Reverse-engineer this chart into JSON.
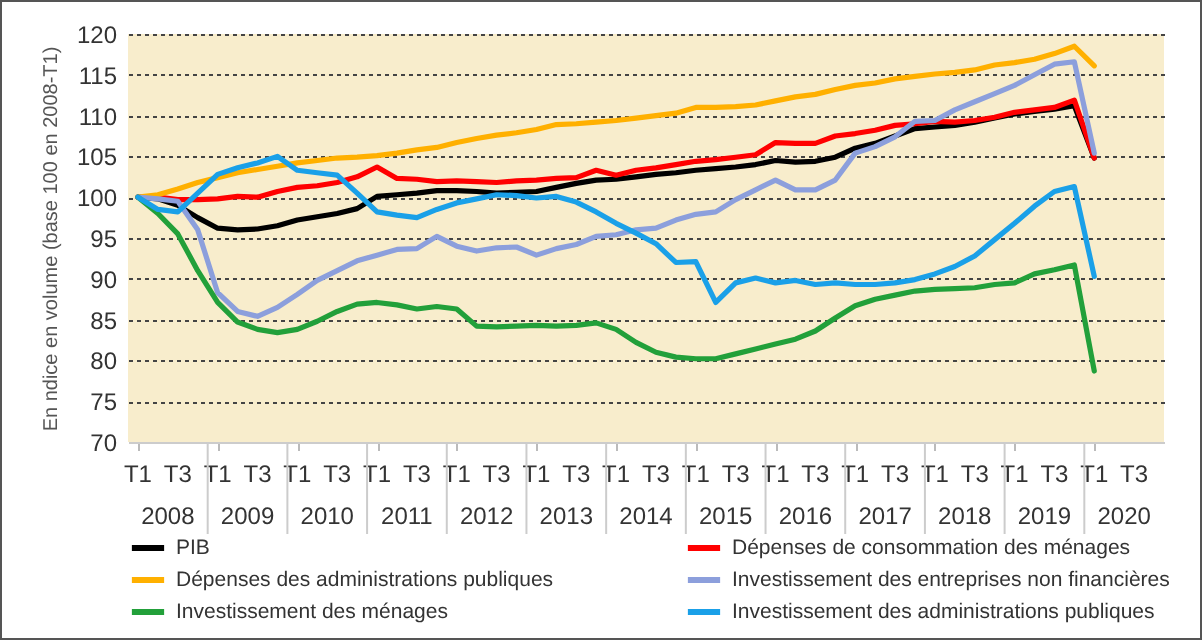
{
  "chart_data": {
    "type": "line",
    "ylabel": "En ndice en volume (base 100 en 2008-T1)",
    "categories": [
      "T1",
      null,
      "T3",
      null,
      "T1",
      null,
      "T3",
      null,
      "T1",
      null,
      "T3",
      null,
      "T1",
      null,
      "T3",
      null,
      "T1",
      null,
      "T3",
      null,
      "T1",
      null,
      "T3",
      null,
      "T1",
      null,
      "T3",
      null,
      "T1",
      null,
      "T3",
      null,
      "T1",
      null,
      "T3",
      null,
      "T1",
      null,
      "T3",
      null,
      "T1",
      null,
      "T3",
      null,
      "T1",
      null,
      "T3",
      null,
      "T1",
      null,
      "T3",
      null
    ],
    "annotations": [
      "2008",
      "2009",
      "2010",
      "2011",
      "2012",
      "2013",
      "2014",
      "2015",
      "2016",
      "2017",
      "2018",
      "2019",
      "2020"
    ],
    "ylim": [
      70,
      120
    ],
    "yticks": [
      70,
      75,
      80,
      85,
      90,
      95,
      100,
      105,
      110,
      115,
      120
    ],
    "grid": "y",
    "legend": "bottom",
    "line_style": "solid",
    "series": [
      {
        "name": "PIB",
        "color": "#000000",
        "values": [
          100,
          99.8,
          99,
          97.5,
          96.2,
          96,
          96.1,
          96.5,
          97.2,
          97.6,
          98,
          98.6,
          100.1,
          100.3,
          100.5,
          100.8,
          100.8,
          100.7,
          100.5,
          100.6,
          100.7,
          101.2,
          101.7,
          102.1,
          102.2,
          102.5,
          102.8,
          103,
          103.3,
          103.5,
          103.7,
          104,
          104.5,
          104.3,
          104.4,
          104.9,
          106,
          106.6,
          107.5,
          108.4,
          108.6,
          108.8,
          109.2,
          109.7,
          110.2,
          110.5,
          110.8,
          111.2,
          104.8,
          null,
          null,
          null
        ]
      },
      {
        "name": "Dépenses de consommation des ménages",
        "color": "#ff0000",
        "values": [
          100,
          100,
          99.7,
          99.7,
          99.8,
          100.1,
          100,
          100.7,
          101.2,
          101.4,
          101.8,
          102.5,
          103.7,
          102.3,
          102.2,
          101.9,
          102,
          101.9,
          101.8,
          102,
          102.1,
          102.3,
          102.4,
          103.3,
          102.7,
          103.3,
          103.6,
          104,
          104.4,
          104.6,
          104.9,
          105.2,
          106.7,
          106.6,
          106.6,
          107.5,
          107.8,
          108.2,
          108.8,
          109,
          109.3,
          109.2,
          109.4,
          109.8,
          110.4,
          110.7,
          111,
          111.9,
          104.8,
          null,
          null,
          null
        ]
      },
      {
        "name": "Dépenses des administrations publiques",
        "color": "#ffb000",
        "values": [
          100,
          100.3,
          101,
          101.8,
          102.4,
          103,
          103.4,
          103.8,
          104.2,
          104.5,
          104.8,
          104.9,
          105.1,
          105.4,
          105.8,
          106.1,
          106.7,
          107.2,
          107.6,
          107.9,
          108.3,
          108.9,
          109,
          109.2,
          109.4,
          109.7,
          110,
          110.3,
          111,
          111,
          111.1,
          111.3,
          111.8,
          112.3,
          112.6,
          113.2,
          113.7,
          114,
          114.5,
          114.8,
          115.1,
          115.3,
          115.6,
          116.2,
          116.5,
          116.9,
          117.6,
          118.5,
          116.1,
          null,
          null,
          null
        ]
      },
      {
        "name": "Investissement des entreprises non financières",
        "color": "#8c9fdc",
        "values": [
          100,
          99.8,
          99.5,
          96,
          88.3,
          86,
          85.4,
          86.5,
          88.1,
          89.8,
          91,
          92.2,
          92.9,
          93.6,
          93.7,
          95.2,
          94,
          93.4,
          93.8,
          93.9,
          92.9,
          93.7,
          94.2,
          95.2,
          95.4,
          96,
          96.2,
          97.2,
          97.9,
          98.2,
          99.7,
          100.9,
          102.1,
          100.9,
          100.9,
          102.1,
          105.4,
          106.2,
          107.4,
          109.3,
          109.4,
          110.7,
          111.7,
          112.7,
          113.7,
          115,
          116.3,
          116.6,
          105.4,
          null,
          null,
          null
        ]
      },
      {
        "name": "Investissement des ménages",
        "color": "#22a03a",
        "values": [
          100,
          98,
          95.5,
          91,
          87.1,
          84.7,
          83.8,
          83.4,
          83.8,
          84.8,
          86,
          86.9,
          87.1,
          86.8,
          86.3,
          86.6,
          86.3,
          84.2,
          84.1,
          84.2,
          84.3,
          84.2,
          84.3,
          84.6,
          83.8,
          82.2,
          81,
          80.4,
          80.2,
          80.2,
          80.8,
          81.4,
          82,
          82.6,
          83.6,
          85.2,
          86.7,
          87.5,
          88,
          88.5,
          88.7,
          88.8,
          88.9,
          89.3,
          89.5,
          90.6,
          91.1,
          91.7,
          78.7,
          null,
          null,
          null
        ]
      },
      {
        "name": "Investissement des administrations publiques",
        "color": "#1aa0e8",
        "values": [
          100,
          98.5,
          98.2,
          100.5,
          102.8,
          103.6,
          104.2,
          105,
          103.3,
          103,
          102.7,
          100.5,
          98.2,
          97.8,
          97.5,
          98.5,
          99.3,
          99.8,
          100.3,
          100.2,
          99.9,
          100.1,
          99.4,
          98.2,
          96.8,
          95.6,
          94.3,
          92,
          92.1,
          87.1,
          89.5,
          90.1,
          89.5,
          89.8,
          89.3,
          89.5,
          89.3,
          89.3,
          89.5,
          89.9,
          90.6,
          91.5,
          92.8,
          94.8,
          96.8,
          98.9,
          100.7,
          101.3,
          90.3,
          null,
          null,
          null
        ]
      }
    ]
  }
}
